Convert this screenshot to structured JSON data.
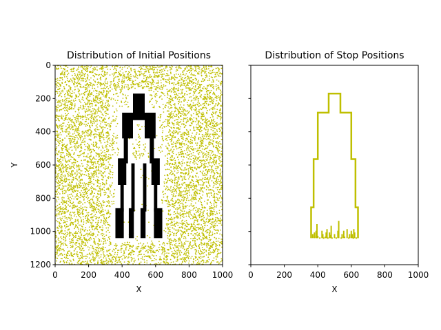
{
  "figure": {
    "background": "#ffffff"
  },
  "chart_data": [
    {
      "type": "scatter",
      "title": "Distribution of Initial Positions",
      "xlabel": "X",
      "ylabel": "Y",
      "xlim": [
        0,
        1000
      ],
      "ylim": [
        1200,
        0
      ],
      "y_inverted": true,
      "xticks": [
        0,
        200,
        400,
        600,
        800,
        1000
      ],
      "yticks": [
        0,
        200,
        400,
        600,
        800,
        1000,
        1200
      ],
      "point_color": "#bfbf00",
      "obstacle_color": "#000000",
      "description": "dense uniform scatter of points over the whole field, with a black structure in the center",
      "obstacle": {
        "color": "#000000",
        "rects": [
          [
            465,
            170,
            535,
            300
          ],
          [
            400,
            285,
            465,
            440
          ],
          [
            535,
            285,
            600,
            440
          ],
          [
            420,
            300,
            580,
            330
          ],
          [
            375,
            560,
            425,
            720
          ],
          [
            575,
            560,
            625,
            720
          ],
          [
            410,
            390,
            435,
            590
          ],
          [
            565,
            390,
            590,
            590
          ],
          [
            360,
            860,
            410,
            1040
          ],
          [
            590,
            860,
            640,
            1040
          ],
          [
            440,
            860,
            470,
            1040
          ],
          [
            510,
            860,
            540,
            1040
          ],
          [
            390,
            710,
            410,
            880
          ],
          [
            590,
            710,
            610,
            880
          ],
          [
            455,
            590,
            475,
            880
          ],
          [
            525,
            590,
            545,
            880
          ]
        ]
      }
    },
    {
      "type": "line",
      "title": "Distribution of Stop Positions",
      "xlabel": "X",
      "ylabel": "",
      "xlim": [
        0,
        1000
      ],
      "ylim": [
        1200,
        0
      ],
      "y_inverted": true,
      "xticks": [
        0,
        200,
        400,
        600,
        800,
        1000
      ],
      "yticks": [
        0,
        200,
        400,
        600,
        800,
        1000,
        1200
      ],
      "show_ytick_labels": false,
      "line_color": "#bfbf00",
      "outline": [
        [
          360,
          1040
        ],
        [
          360,
          855
        ],
        [
          375,
          855
        ],
        [
          375,
          565
        ],
        [
          400,
          565
        ],
        [
          400,
          285
        ],
        [
          465,
          285
        ],
        [
          465,
          170
        ],
        [
          535,
          170
        ],
        [
          535,
          285
        ],
        [
          600,
          285
        ],
        [
          600,
          565
        ],
        [
          625,
          565
        ],
        [
          625,
          855
        ],
        [
          640,
          855
        ],
        [
          640,
          1040
        ]
      ],
      "inner_points": [
        [
          370,
          1020
        ],
        [
          380,
          1030
        ],
        [
          390,
          1000
        ],
        [
          395,
          960
        ],
        [
          400,
          1030
        ],
        [
          412,
          1040
        ],
        [
          425,
          1000
        ],
        [
          435,
          1040
        ],
        [
          445,
          1035
        ],
        [
          455,
          990
        ],
        [
          460,
          1040
        ],
        [
          470,
          1010
        ],
        [
          480,
          970
        ],
        [
          485,
          1040
        ],
        [
          500,
          1020
        ],
        [
          510,
          1040
        ],
        [
          520,
          1000
        ],
        [
          525,
          940
        ],
        [
          540,
          1040
        ],
        [
          555,
          1000
        ],
        [
          560,
          1035
        ],
        [
          575,
          990
        ],
        [
          585,
          1040
        ],
        [
          600,
          1000
        ],
        [
          605,
          1020
        ],
        [
          612,
          1040
        ],
        [
          620,
          1010
        ],
        [
          630,
          1040
        ],
        [
          380,
          1010
        ],
        [
          395,
          1015
        ],
        [
          450,
          1010
        ],
        [
          475,
          1025
        ],
        [
          545,
          1020
        ],
        [
          590,
          1020
        ],
        [
          615,
          990
        ],
        [
          430,
          1020
        ]
      ]
    }
  ]
}
